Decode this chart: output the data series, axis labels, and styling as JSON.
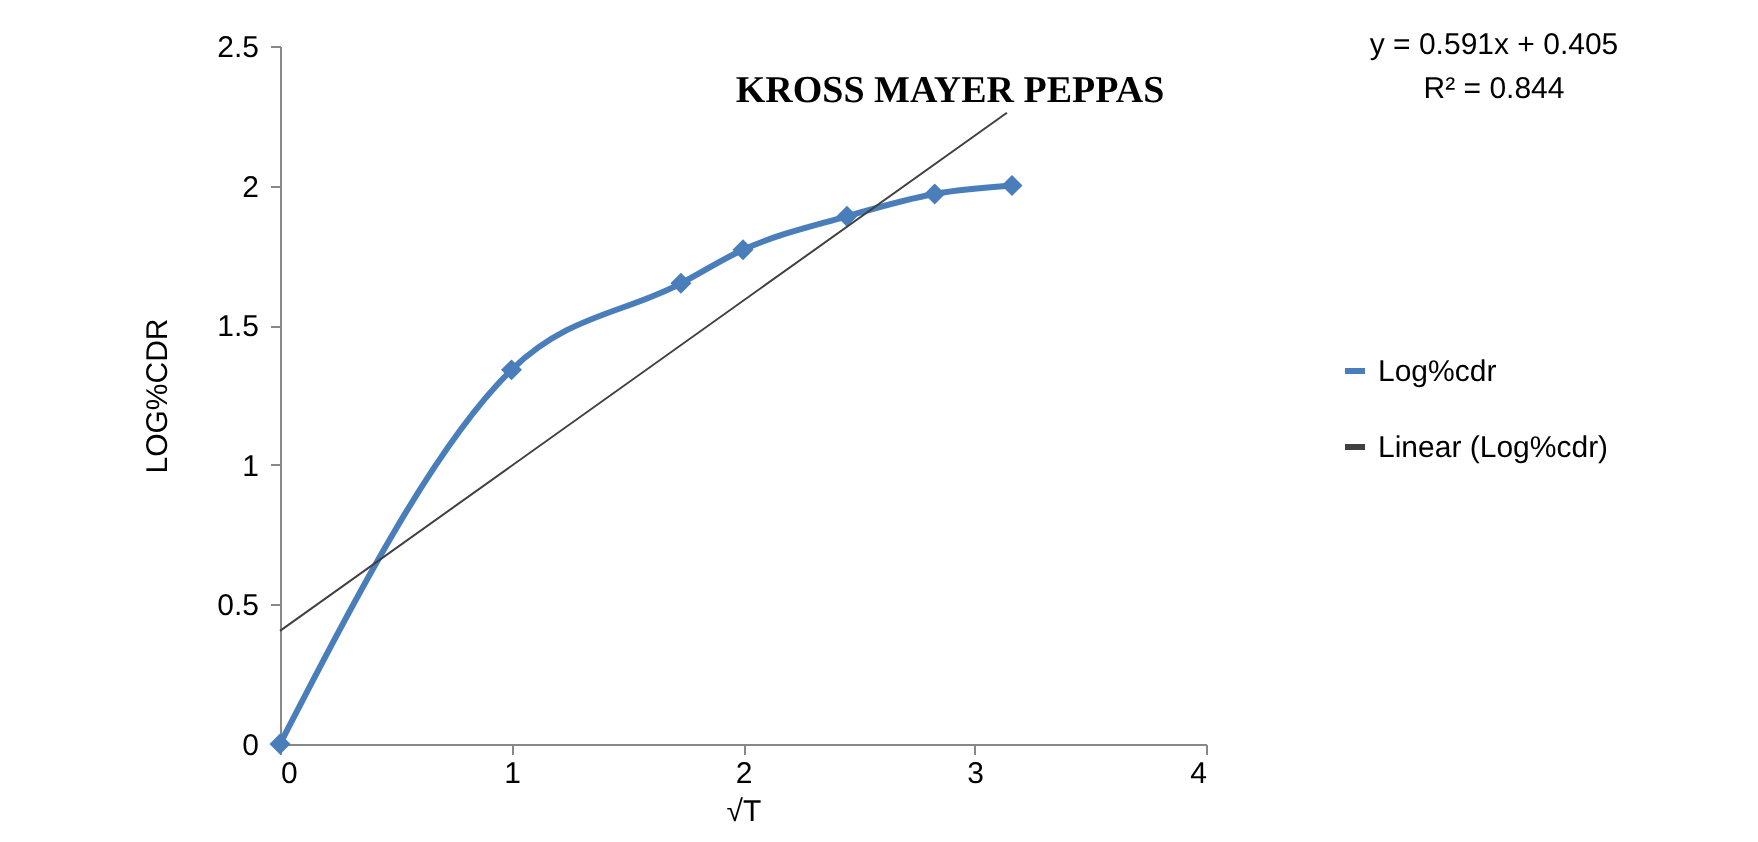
{
  "chart_data": {
    "type": "line",
    "title": "KROSS MAYER PEPPAS",
    "xlabel": "√T",
    "ylabel": "LOG%CDR",
    "annotations": [
      "y = 0.591x + 0.405",
      "R² = 0.844"
    ],
    "x": [
      0,
      1,
      1.732,
      2,
      2.449,
      2.828,
      3.162
    ],
    "series": [
      {
        "name": "Log%cdr",
        "color": "#4a7ebb",
        "values": [
          0,
          1.34,
          1.65,
          1.77,
          1.89,
          1.97,
          2.0
        ]
      },
      {
        "name": "Linear (Log%cdr)",
        "color": "#404040",
        "type": "line",
        "marker": "none",
        "x": [
          0,
          3.14
        ],
        "values": [
          0.405,
          2.261
        ]
      }
    ],
    "xlim": [
      0,
      4
    ],
    "xticks": [
      0,
      1,
      2,
      3,
      4
    ],
    "ylim": [
      0,
      2.5
    ],
    "yticks": [
      0,
      0.5,
      1,
      1.5,
      2,
      2.5
    ],
    "grid": false,
    "legend": "right",
    "marker": "diamond",
    "line_style": "solid"
  }
}
